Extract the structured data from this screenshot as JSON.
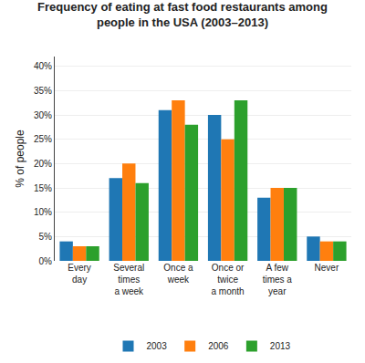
{
  "chart_data": {
    "type": "bar",
    "title": "Frequency of eating at fast food restaurants among\npeople in the USA (2003–2013)",
    "categories": [
      "Every\nday",
      "Several\ntimes\na week",
      "Once a\nweek",
      "Once or\ntwice\na month",
      "A few\ntimes a\nyear",
      "Never"
    ],
    "series": [
      {
        "name": "2003",
        "values": [
          4,
          17,
          31,
          30,
          13,
          5
        ]
      },
      {
        "name": "2006",
        "values": [
          3,
          20,
          33,
          25,
          15,
          4
        ]
      },
      {
        "name": "2013",
        "values": [
          3,
          16,
          28,
          33,
          15,
          4
        ]
      }
    ],
    "ylabel": "% of people",
    "ylim": [
      0,
      42
    ],
    "yticks": [
      {
        "value": 0,
        "label": "0%"
      },
      {
        "value": 5,
        "label": "5%"
      },
      {
        "value": 10,
        "label": "10%"
      },
      {
        "value": 15,
        "label": "15%"
      },
      {
        "value": 20,
        "label": "20%"
      },
      {
        "value": 25,
        "label": "25%"
      },
      {
        "value": 30,
        "label": "30%"
      },
      {
        "value": 35,
        "label": "35%"
      },
      {
        "value": 40,
        "label": "40%"
      }
    ],
    "grid": true,
    "legend": "bottom"
  }
}
